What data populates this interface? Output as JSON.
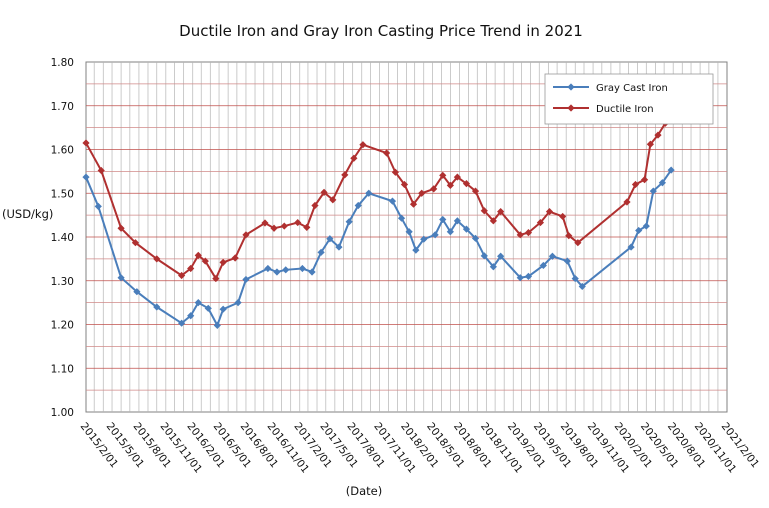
{
  "chart_data": {
    "type": "line",
    "title": "Ductile Iron and Gray Iron Casting Price Trend in 2021",
    "xlabel": "(Date)",
    "ylabel": "(USD/kg)",
    "ylim": [
      1.0,
      1.8
    ],
    "yticks": [
      "1.00",
      "1.10",
      "1.20",
      "1.30",
      "1.40",
      "1.50",
      "1.60",
      "1.70",
      "1.80"
    ],
    "xlim": [
      "2015-02-01",
      "2021-02-01"
    ],
    "xticks": [
      "2015/2/01",
      "2015/5/01",
      "2015/8/01",
      "2015/11/01",
      "2016/2/01",
      "2016/5/01",
      "2016/8/01",
      "2016/11/01",
      "2017/2/01",
      "2017/5/01",
      "2017/8/01",
      "2017/11/01",
      "2018/2/01",
      "2018/5/01",
      "2018/8/01",
      "2018/11/01",
      "2019/2/01",
      "2019/5/01",
      "2019/8/01",
      "2019/11/01",
      "2020/2/01",
      "2020/5/01",
      "2020/8/01",
      "2020/11/01",
      "2021/2/01"
    ],
    "grid": true,
    "legend_position": "top-right",
    "series": [
      {
        "name": "Gray Cast Iron",
        "color": "#4a7ebb",
        "marker": "diamond",
        "points": [
          [
            "2015-02-01",
            1.537
          ],
          [
            "2015-03-15",
            1.47
          ],
          [
            "2015-06-01",
            1.307
          ],
          [
            "2015-07-25",
            1.275
          ],
          [
            "2015-10-01",
            1.24
          ],
          [
            "2015-12-25",
            1.203
          ],
          [
            "2016-01-25",
            1.22
          ],
          [
            "2016-02-20",
            1.25
          ],
          [
            "2016-03-25",
            1.237
          ],
          [
            "2016-04-25",
            1.198
          ],
          [
            "2016-05-15",
            1.235
          ],
          [
            "2016-07-05",
            1.25
          ],
          [
            "2016-08-01",
            1.303
          ],
          [
            "2016-10-15",
            1.328
          ],
          [
            "2016-11-15",
            1.32
          ],
          [
            "2016-12-15",
            1.325
          ],
          [
            "2017-02-10",
            1.328
          ],
          [
            "2017-03-15",
            1.32
          ],
          [
            "2017-04-15",
            1.365
          ],
          [
            "2017-05-15",
            1.396
          ],
          [
            "2017-06-15",
            1.377
          ],
          [
            "2017-07-20",
            1.435
          ],
          [
            "2017-08-20",
            1.472
          ],
          [
            "2017-09-25",
            1.5
          ],
          [
            "2017-12-15",
            1.482
          ],
          [
            "2018-01-15",
            1.443
          ],
          [
            "2018-02-10",
            1.412
          ],
          [
            "2018-03-05",
            1.37
          ],
          [
            "2018-04-01",
            1.395
          ],
          [
            "2018-05-10",
            1.405
          ],
          [
            "2018-06-05",
            1.44
          ],
          [
            "2018-07-01",
            1.412
          ],
          [
            "2018-07-25",
            1.437
          ],
          [
            "2018-08-25",
            1.418
          ],
          [
            "2018-09-25",
            1.397
          ],
          [
            "2018-10-25",
            1.357
          ],
          [
            "2018-11-25",
            1.332
          ],
          [
            "2018-12-20",
            1.356
          ],
          [
            "2019-02-25",
            1.307
          ],
          [
            "2019-03-25",
            1.31
          ],
          [
            "2019-05-15",
            1.335
          ],
          [
            "2019-06-15",
            1.356
          ],
          [
            "2019-08-05",
            1.345
          ],
          [
            "2019-09-01",
            1.305
          ],
          [
            "2019-09-25",
            1.287
          ],
          [
            "2020-03-10",
            1.377
          ],
          [
            "2020-04-05",
            1.415
          ],
          [
            "2020-05-01",
            1.425
          ],
          [
            "2020-05-25",
            1.505
          ],
          [
            "2020-06-25",
            1.524
          ],
          [
            "2020-07-25",
            1.553
          ]
        ]
      },
      {
        "name": "Ductile Iron",
        "color": "#b03030",
        "marker": "diamond",
        "points": [
          [
            "2015-02-01",
            1.615
          ],
          [
            "2015-03-25",
            1.552
          ],
          [
            "2015-06-01",
            1.42
          ],
          [
            "2015-07-20",
            1.387
          ],
          [
            "2015-10-01",
            1.35
          ],
          [
            "2015-12-25",
            1.312
          ],
          [
            "2016-01-25",
            1.328
          ],
          [
            "2016-02-20",
            1.358
          ],
          [
            "2016-03-15",
            1.345
          ],
          [
            "2016-04-20",
            1.305
          ],
          [
            "2016-05-15",
            1.342
          ],
          [
            "2016-06-25",
            1.352
          ],
          [
            "2016-08-01",
            1.405
          ],
          [
            "2016-10-05",
            1.432
          ],
          [
            "2016-11-05",
            1.42
          ],
          [
            "2016-12-10",
            1.425
          ],
          [
            "2017-01-25",
            1.433
          ],
          [
            "2017-02-25",
            1.422
          ],
          [
            "2017-03-25",
            1.472
          ],
          [
            "2017-04-25",
            1.502
          ],
          [
            "2017-05-25",
            1.485
          ],
          [
            "2017-07-05",
            1.542
          ],
          [
            "2017-08-05",
            1.58
          ],
          [
            "2017-09-05",
            1.611
          ],
          [
            "2017-11-25",
            1.592
          ],
          [
            "2017-12-25",
            1.548
          ],
          [
            "2018-01-25",
            1.52
          ],
          [
            "2018-02-25",
            1.475
          ],
          [
            "2018-03-25",
            1.5
          ],
          [
            "2018-05-05",
            1.51
          ],
          [
            "2018-06-05",
            1.541
          ],
          [
            "2018-07-01",
            1.518
          ],
          [
            "2018-07-25",
            1.537
          ],
          [
            "2018-08-25",
            1.522
          ],
          [
            "2018-09-25",
            1.505
          ],
          [
            "2018-10-25",
            1.46
          ],
          [
            "2018-11-25",
            1.437
          ],
          [
            "2018-12-20",
            1.458
          ],
          [
            "2019-02-25",
            1.405
          ],
          [
            "2019-03-25",
            1.41
          ],
          [
            "2019-05-05",
            1.433
          ],
          [
            "2019-06-05",
            1.458
          ],
          [
            "2019-07-20",
            1.447
          ],
          [
            "2019-08-10",
            1.403
          ],
          [
            "2019-09-10",
            1.387
          ],
          [
            "2020-02-25",
            1.48
          ],
          [
            "2020-03-25",
            1.52
          ],
          [
            "2020-04-25",
            1.531
          ],
          [
            "2020-05-15",
            1.612
          ],
          [
            "2020-06-10",
            1.633
          ],
          [
            "2020-07-05",
            1.66
          ]
        ]
      }
    ]
  }
}
